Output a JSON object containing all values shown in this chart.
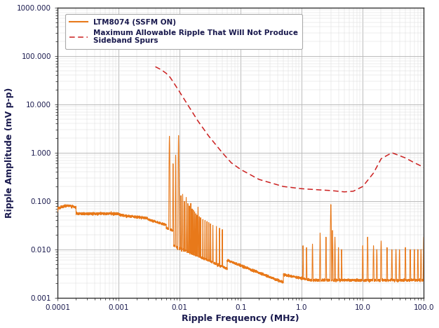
{
  "xlabel": "Ripple Frequency (MHz)",
  "ylabel": "Ripple Amplitude (mV p-p)",
  "background_color": "#ffffff",
  "grid_major_color": "#bbbbbb",
  "grid_minor_color": "#dddddd",
  "orange_color": "#E8791A",
  "red_dashed_color": "#cc2222",
  "legend_label1": "LTM8074 (SSFM ON)",
  "legend_label2": "Maximum Allowable Ripple That Will Not Produce\nSideband Spurs",
  "text_color": "#1a1a4e",
  "tick_label_color": "#1a1a4e",
  "x_ticks": [
    0.0001,
    0.001,
    0.01,
    0.1,
    1.0,
    10.0,
    100.0
  ],
  "x_tick_labels": [
    "0.0001",
    "0.001",
    "0.01",
    "0.1",
    "1.0",
    "10.0",
    "100.0"
  ],
  "y_ticks": [
    0.001,
    0.01,
    0.1,
    1.0,
    10.0,
    100.0,
    1000.0
  ],
  "y_tick_labels": [
    "0.001",
    "0.010",
    "0.100",
    "1.000",
    "10.000",
    "100.000",
    "1000.000"
  ],
  "red_x": [
    0.004,
    0.005,
    0.006,
    0.007,
    0.008,
    0.01,
    0.015,
    0.02,
    0.03,
    0.05,
    0.07,
    0.1,
    0.2,
    0.5,
    1.0,
    2.0,
    3.0,
    5.0,
    7.0,
    10.0,
    15.0,
    20.0,
    30.0,
    50.0,
    70.0,
    100.0
  ],
  "red_y": [
    60.0,
    52.0,
    44.0,
    36.0,
    28.0,
    18.0,
    8.0,
    4.5,
    2.2,
    1.0,
    0.62,
    0.45,
    0.28,
    0.2,
    0.18,
    0.17,
    0.165,
    0.155,
    0.16,
    0.2,
    0.38,
    0.75,
    1.0,
    0.78,
    0.62,
    0.5
  ]
}
